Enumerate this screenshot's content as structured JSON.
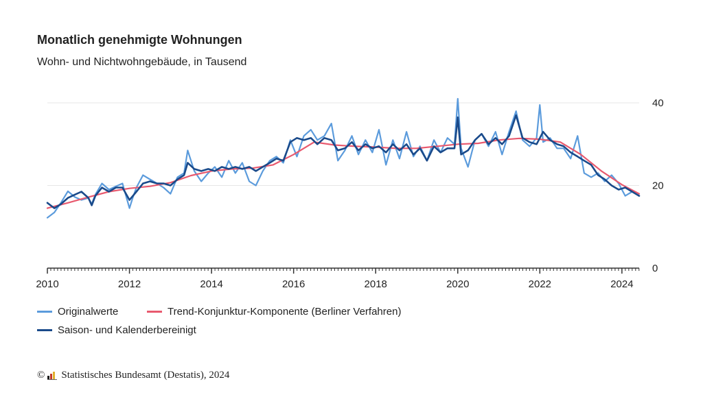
{
  "header": {
    "title": "Monatlich genehmigte Wohnungen",
    "subtitle": "Wohn- und Nichtwohngebäude, in Tausend"
  },
  "footer": {
    "copyright_symbol": "©",
    "source_text": "Statistisches Bundesamt (Destatis), 2024"
  },
  "colors": {
    "original": "#5b9bdc",
    "trend": "#e8596e",
    "adjusted": "#1a4a8a",
    "grid": "#e6e6e6",
    "axis": "#333333"
  },
  "chart_data": {
    "type": "line",
    "title": "Monatlich genehmigte Wohnungen",
    "subtitle": "Wohn- und Nichtwohngebäude, in Tausend",
    "x_unit": "year",
    "xlim": [
      2010,
      2024.42
    ],
    "ylim": [
      0,
      40
    ],
    "x_ticks": [
      "2010",
      "2012",
      "2014",
      "2016",
      "2018",
      "2020",
      "2022",
      "2024"
    ],
    "y_ticks": [
      "0",
      "20",
      "40"
    ],
    "y_axis_side": "right",
    "grid": true,
    "legend_position": "bottom",
    "series": [
      {
        "name": "Originalwerte",
        "key": "original",
        "x": [
          2010.0,
          2010.17,
          2010.33,
          2010.5,
          2010.67,
          2010.83,
          2011.0,
          2011.08,
          2011.17,
          2011.33,
          2011.5,
          2011.67,
          2011.83,
          2012.0,
          2012.08,
          2012.17,
          2012.33,
          2012.5,
          2012.67,
          2012.83,
          2013.0,
          2013.17,
          2013.33,
          2013.42,
          2013.58,
          2013.75,
          2013.92,
          2014.08,
          2014.25,
          2014.42,
          2014.58,
          2014.75,
          2014.92,
          2015.08,
          2015.25,
          2015.42,
          2015.58,
          2015.75,
          2015.92,
          2016.08,
          2016.25,
          2016.42,
          2016.58,
          2016.75,
          2016.92,
          2017.08,
          2017.25,
          2017.42,
          2017.58,
          2017.75,
          2017.92,
          2018.08,
          2018.25,
          2018.42,
          2018.58,
          2018.75,
          2018.92,
          2019.08,
          2019.25,
          2019.42,
          2019.58,
          2019.75,
          2019.92,
          2020.0,
          2020.08,
          2020.25,
          2020.42,
          2020.58,
          2020.75,
          2020.92,
          2021.08,
          2021.25,
          2021.42,
          2021.58,
          2021.75,
          2021.92,
          2022.0,
          2022.08,
          2022.25,
          2022.42,
          2022.58,
          2022.75,
          2022.92,
          2023.08,
          2023.25,
          2023.42,
          2023.58,
          2023.75,
          2023.92,
          2024.08,
          2024.25,
          2024.42
        ],
        "y": [
          12.2,
          13.5,
          15.8,
          18.6,
          17.2,
          16.5,
          17.0,
          15.5,
          17.8,
          20.5,
          19.0,
          19.8,
          20.5,
          14.5,
          17.0,
          19.5,
          22.5,
          21.5,
          20.5,
          19.5,
          18.0,
          22.0,
          23.0,
          28.5,
          23.5,
          21.0,
          23.0,
          24.5,
          22.0,
          26.0,
          23.0,
          25.5,
          21.0,
          20.0,
          23.5,
          26.0,
          27.0,
          25.5,
          31.0,
          27.0,
          32.0,
          33.5,
          31.0,
          32.0,
          35.0,
          26.0,
          28.5,
          32.0,
          27.5,
          31.0,
          28.0,
          33.5,
          25.0,
          31.0,
          26.5,
          33.0,
          27.0,
          29.5,
          26.0,
          31.0,
          28.0,
          31.5,
          30.0,
          41.0,
          29.0,
          24.5,
          31.0,
          32.5,
          29.5,
          33.0,
          27.5,
          33.0,
          38.0,
          31.0,
          29.5,
          31.5,
          39.5,
          30.5,
          31.5,
          29.0,
          29.0,
          26.5,
          32.0,
          23.0,
          22.0,
          23.0,
          21.0,
          22.5,
          20.5,
          17.5,
          18.5,
          17.5
        ]
      },
      {
        "name": "Trend-Konjunktur-Komponente (Berliner Verfahren)",
        "key": "trend",
        "x": [
          2010.0,
          2010.5,
          2011.0,
          2011.5,
          2012.0,
          2012.5,
          2013.0,
          2013.5,
          2014.0,
          2014.5,
          2015.0,
          2015.5,
          2016.0,
          2016.5,
          2017.0,
          2017.5,
          2018.0,
          2018.5,
          2019.0,
          2019.5,
          2020.0,
          2020.5,
          2021.0,
          2021.5,
          2022.0,
          2022.5,
          2023.0,
          2023.5,
          2024.0,
          2024.42
        ],
        "y": [
          14.5,
          15.8,
          17.2,
          18.5,
          19.3,
          19.8,
          20.7,
          22.4,
          23.5,
          24.0,
          24.2,
          25.0,
          27.5,
          30.5,
          29.8,
          29.5,
          29.3,
          29.0,
          29.0,
          29.5,
          30.0,
          30.2,
          31.0,
          31.4,
          31.2,
          30.5,
          27.5,
          23.5,
          20.2,
          18.0
        ]
      },
      {
        "name": "Saison- und Kalenderbereinigt",
        "key": "adjusted",
        "x": [
          2010.0,
          2010.17,
          2010.33,
          2010.5,
          2010.67,
          2010.83,
          2011.0,
          2011.08,
          2011.17,
          2011.33,
          2011.5,
          2011.67,
          2011.83,
          2012.0,
          2012.17,
          2012.33,
          2012.5,
          2012.67,
          2012.83,
          2013.0,
          2013.17,
          2013.33,
          2013.42,
          2013.58,
          2013.75,
          2013.92,
          2014.08,
          2014.25,
          2014.42,
          2014.58,
          2014.75,
          2014.92,
          2015.08,
          2015.25,
          2015.42,
          2015.58,
          2015.75,
          2015.92,
          2016.08,
          2016.25,
          2016.42,
          2016.58,
          2016.75,
          2016.92,
          2017.08,
          2017.25,
          2017.42,
          2017.58,
          2017.75,
          2017.92,
          2018.08,
          2018.25,
          2018.42,
          2018.58,
          2018.75,
          2018.92,
          2019.08,
          2019.25,
          2019.42,
          2019.58,
          2019.75,
          2019.92,
          2020.0,
          2020.08,
          2020.25,
          2020.42,
          2020.58,
          2020.75,
          2020.92,
          2021.08,
          2021.25,
          2021.42,
          2021.58,
          2021.75,
          2021.92,
          2022.08,
          2022.25,
          2022.42,
          2022.58,
          2022.75,
          2022.92,
          2023.08,
          2023.25,
          2023.42,
          2023.58,
          2023.75,
          2023.92,
          2024.08,
          2024.25,
          2024.42
        ],
        "y": [
          15.8,
          14.5,
          15.5,
          17.0,
          17.8,
          18.5,
          17.0,
          15.2,
          17.5,
          19.5,
          18.5,
          19.5,
          19.5,
          16.5,
          18.5,
          20.5,
          21.0,
          20.5,
          20.5,
          20.0,
          21.5,
          22.5,
          25.5,
          24.0,
          23.5,
          24.0,
          23.5,
          24.5,
          24.0,
          24.5,
          24.0,
          24.5,
          23.5,
          24.5,
          25.5,
          26.5,
          26.0,
          30.5,
          31.5,
          31.0,
          31.5,
          30.0,
          31.5,
          31.0,
          28.5,
          29.0,
          30.5,
          28.5,
          30.0,
          29.0,
          29.5,
          28.0,
          30.0,
          28.5,
          30.0,
          27.5,
          29.0,
          26.0,
          29.5,
          28.0,
          29.0,
          29.0,
          36.5,
          27.5,
          28.5,
          31.0,
          32.5,
          30.0,
          31.5,
          30.0,
          32.0,
          37.0,
          31.5,
          30.5,
          30.0,
          33.0,
          31.0,
          30.0,
          29.5,
          28.0,
          27.0,
          26.0,
          25.0,
          22.5,
          21.5,
          20.0,
          19.0,
          19.5,
          18.5,
          17.5
        ]
      }
    ]
  }
}
